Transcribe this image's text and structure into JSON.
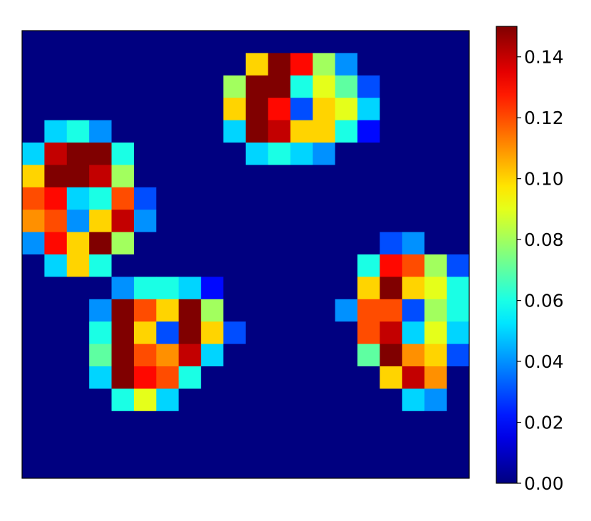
{
  "chart_data": {
    "type": "heatmap",
    "colormap": "jet",
    "zlim": [
      0,
      0.15
    ],
    "zticks": [
      {
        "value": 0,
        "label": "0.00"
      },
      0.02,
      0.04,
      0.06,
      0.08,
      {
        "value": 0.1,
        "label": "0.10"
      },
      0.12,
      0.14
    ],
    "z": [
      [
        0,
        0,
        0,
        0,
        0,
        0,
        0,
        0,
        0,
        0,
        0,
        0,
        0,
        0,
        0,
        0,
        0,
        0,
        0,
        0
      ],
      [
        0,
        0,
        0,
        0,
        0,
        0,
        0,
        0,
        0,
        0,
        0.1,
        0.15,
        0.13,
        0.08,
        0.04,
        0,
        0,
        0,
        0,
        0
      ],
      [
        0,
        0,
        0,
        0,
        0,
        0,
        0,
        0,
        0,
        0.08,
        0.15,
        0.15,
        0.06,
        0.09,
        0.07,
        0.03,
        0,
        0,
        0,
        0
      ],
      [
        0,
        0,
        0,
        0,
        0,
        0,
        0,
        0,
        0,
        0.1,
        0.15,
        0.13,
        0.03,
        0.1,
        0.09,
        0.05,
        0,
        0,
        0,
        0
      ],
      [
        0,
        0.05,
        0.06,
        0.04,
        0,
        0,
        0,
        0,
        0,
        0.05,
        0.15,
        0.14,
        0.1,
        0.1,
        0.06,
        0.02,
        0,
        0,
        0,
        0
      ],
      [
        0.05,
        0.14,
        0.15,
        0.15,
        0.06,
        0,
        0,
        0,
        0,
        0,
        0.05,
        0.06,
        0.05,
        0.04,
        0,
        0,
        0,
        0,
        0,
        0
      ],
      [
        0.1,
        0.15,
        0.15,
        0.14,
        0.08,
        0,
        0,
        0,
        0,
        0,
        0,
        0,
        0,
        0,
        0,
        0,
        0,
        0,
        0,
        0
      ],
      [
        0.12,
        0.13,
        0.05,
        0.06,
        0.12,
        0.03,
        0,
        0,
        0,
        0,
        0,
        0,
        0,
        0,
        0,
        0,
        0,
        0,
        0,
        0
      ],
      [
        0.11,
        0.12,
        0.04,
        0.1,
        0.14,
        0.04,
        0,
        0,
        0,
        0,
        0,
        0,
        0,
        0,
        0,
        0,
        0,
        0,
        0,
        0
      ],
      [
        0.04,
        0.13,
        0.1,
        0.15,
        0.08,
        0,
        0,
        0,
        0,
        0,
        0,
        0,
        0,
        0,
        0,
        0,
        0.03,
        0.04,
        0,
        0
      ],
      [
        0,
        0.05,
        0.1,
        0.06,
        0,
        0,
        0,
        0,
        0,
        0,
        0,
        0,
        0,
        0,
        0,
        0.06,
        0.13,
        0.12,
        0.08,
        0.03
      ],
      [
        0,
        0,
        0,
        0,
        0.04,
        0.06,
        0.06,
        0.05,
        0.02,
        0,
        0,
        0,
        0,
        0,
        0,
        0.1,
        0.15,
        0.1,
        0.09,
        0.06
      ],
      [
        0,
        0,
        0,
        0.04,
        0.15,
        0.12,
        0.1,
        0.15,
        0.08,
        0,
        0,
        0,
        0,
        0,
        0.04,
        0.12,
        0.12,
        0.03,
        0.08,
        0.06
      ],
      [
        0,
        0,
        0,
        0.06,
        0.15,
        0.1,
        0.03,
        0.15,
        0.1,
        0.03,
        0,
        0,
        0,
        0,
        0,
        0.12,
        0.14,
        0.05,
        0.09,
        0.05
      ],
      [
        0,
        0,
        0,
        0.07,
        0.15,
        0.12,
        0.11,
        0.14,
        0.05,
        0,
        0,
        0,
        0,
        0,
        0,
        0.07,
        0.15,
        0.11,
        0.1,
        0.03
      ],
      [
        0,
        0,
        0,
        0.05,
        0.15,
        0.13,
        0.12,
        0.06,
        0,
        0,
        0,
        0,
        0,
        0,
        0,
        0,
        0.1,
        0.14,
        0.11,
        0
      ],
      [
        0,
        0,
        0,
        0,
        0.06,
        0.09,
        0.05,
        0,
        0,
        0,
        0,
        0,
        0,
        0,
        0,
        0,
        0,
        0.05,
        0.04,
        0
      ],
      [
        0,
        0,
        0,
        0,
        0,
        0,
        0,
        0,
        0,
        0,
        0,
        0,
        0,
        0,
        0,
        0,
        0,
        0,
        0,
        0
      ],
      [
        0,
        0,
        0,
        0,
        0,
        0,
        0,
        0,
        0,
        0,
        0,
        0,
        0,
        0,
        0,
        0,
        0,
        0,
        0,
        0
      ],
      [
        0,
        0,
        0,
        0,
        0,
        0,
        0,
        0,
        0,
        0,
        0,
        0,
        0,
        0,
        0,
        0,
        0,
        0,
        0,
        0
      ]
    ]
  }
}
